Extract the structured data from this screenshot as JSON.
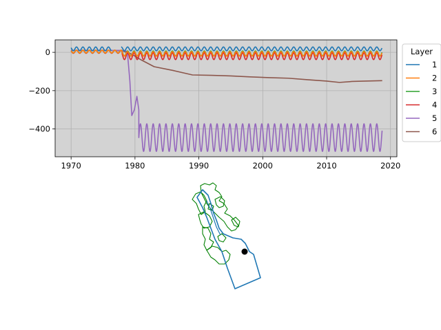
{
  "chart_data": [
    {
      "type": "line",
      "title": "",
      "xlabel": "",
      "ylabel": "",
      "xlim": [
        1967.5,
        2021
      ],
      "ylim": [
        -545,
        65
      ],
      "xticks": [
        1970,
        1980,
        1990,
        2000,
        2010,
        2020
      ],
      "yticks": [
        0,
        -200,
        -400
      ],
      "grid": true,
      "background": "#d3d3d3",
      "legend": {
        "title": "Layer",
        "placement": "outside-right"
      },
      "series": [
        {
          "name": "1",
          "color": "#1f77b4",
          "model": {
            "start": 1970,
            "gap": [
              1976.3,
              1977.8
            ],
            "base": 18,
            "amp": 10,
            "drift": 0
          }
        },
        {
          "name": "2",
          "color": "#ff7f0e",
          "model": {
            "start": 1970,
            "base": 4,
            "amp": 7,
            "drop_year": 1978,
            "base_after": -8,
            "amp_after": 12
          }
        },
        {
          "name": "3",
          "color": "#2ca02c",
          "model": {
            "start": 1970,
            "base": 4,
            "amp": 7,
            "drop_year": 1978,
            "base_after": -6,
            "amp_after": 13
          }
        },
        {
          "name": "4",
          "color": "#d62728",
          "model": {
            "start": 1970,
            "base": 3,
            "amp": 8,
            "drop_year": 1978,
            "base_after": -20,
            "amp_after": 18
          }
        },
        {
          "name": "5",
          "color": "#9467bd",
          "points": [
            [
              1970,
              10
            ],
            [
              1978,
              10
            ],
            [
              1978.8,
              5
            ],
            [
              1979.2,
              -150
            ],
            [
              1979.5,
              -330
            ],
            [
              1979.9,
              -300
            ],
            [
              1980.3,
              -230
            ],
            [
              1980.6,
              -300
            ]
          ],
          "model": {
            "start": 1980.6,
            "base": -445,
            "amp": 72,
            "drift": 0
          }
        },
        {
          "name": "6",
          "color": "#8c564b",
          "points": [
            [
              1970,
              10
            ],
            [
              1976,
              10
            ],
            [
              1978,
              8
            ],
            [
              1979.5,
              -10
            ],
            [
              1981,
              -40
            ],
            [
              1983,
              -75
            ],
            [
              1986,
              -95
            ],
            [
              1989,
              -118
            ],
            [
              1992,
              -120
            ],
            [
              1995,
              -123
            ],
            [
              1998,
              -128
            ],
            [
              2001,
              -132
            ],
            [
              2004,
              -135
            ],
            [
              2007,
              -143
            ],
            [
              2010,
              -150
            ],
            [
              2012,
              -157
            ],
            [
              2014,
              -152
            ],
            [
              2016,
              -150
            ],
            [
              2018.7,
              -148
            ]
          ]
        }
      ]
    },
    {
      "type": "map",
      "title": "",
      "marker": {
        "label": "",
        "color": "#000000"
      },
      "outline_color": "#1f77b4",
      "subregion_color": "#008000"
    }
  ]
}
